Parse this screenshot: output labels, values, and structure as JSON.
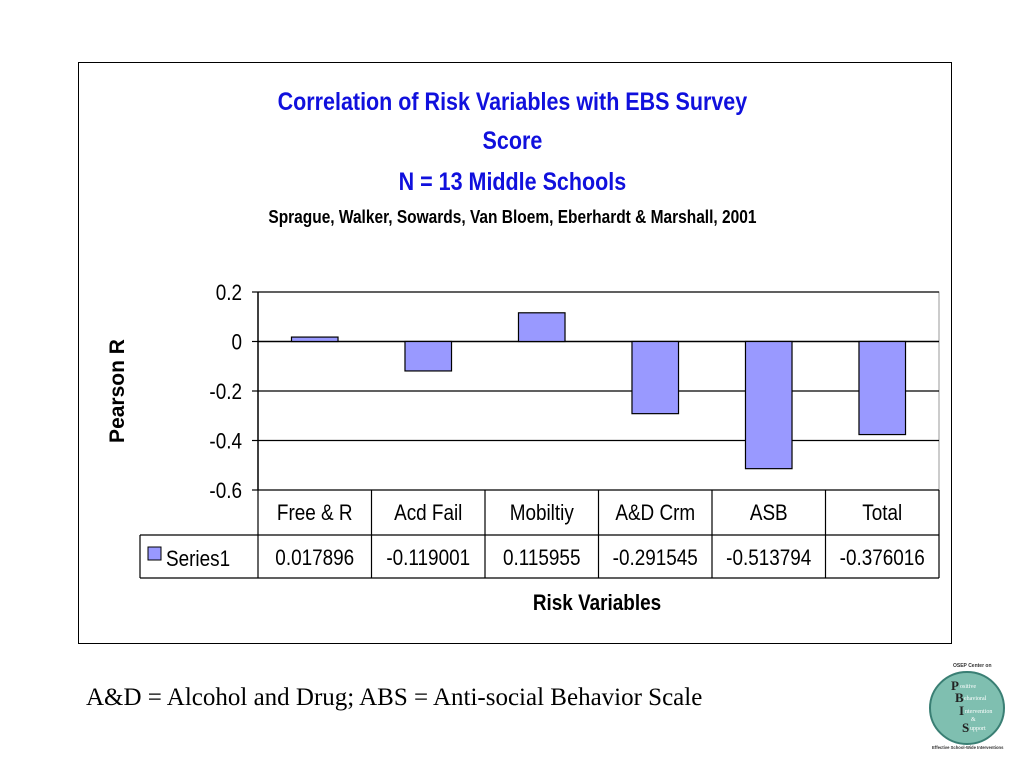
{
  "slide": {
    "footnote": "A&D = Alcohol and Drug; ABS = Anti-social Behavior Scale",
    "logo": {
      "text": [
        "OSEP Center on",
        "P",
        "ositive",
        "B",
        "ehavioral",
        "I",
        "ntervention",
        "&",
        "S",
        "upport",
        "Effective School-Wide Interventions"
      ],
      "colors": {
        "badge": "#7fbfb0",
        "ring": "#3a7f74"
      }
    }
  },
  "chart_data": {
    "type": "bar",
    "title_lines": [
      "Correlation of Risk Variables with EBS Survey",
      "Score",
      "N = 13 Middle Schools"
    ],
    "subtitle": "Sprague, Walker, Sowards, Van Bloem, Eberhardt & Marshall, 2001",
    "xlabel": "Risk Variables",
    "ylabel": "Pearson R",
    "categories": [
      "Free & R",
      "Acd Fail",
      "Mobiltiy",
      "A&D Crm",
      "ASB",
      "Total"
    ],
    "series": [
      {
        "name": "Series1",
        "values": [
          0.017896,
          -0.119001,
          0.115955,
          -0.291545,
          -0.513794,
          -0.376016
        ]
      }
    ],
    "value_labels": [
      "0.017896",
      "-0.119001",
      "0.115955",
      "-0.291545",
      "-0.513794",
      "-0.376016"
    ],
    "yticks": [
      "0.2",
      "0",
      "-0.2",
      "-0.4",
      "-0.6"
    ],
    "ytick_values": [
      0.2,
      0,
      -0.2,
      -0.4,
      -0.6
    ],
    "ylim": [
      -0.6,
      0.2
    ],
    "grid": true,
    "legend": "data-table",
    "colors": {
      "bar": "#9999ff",
      "bar_edge": "#000000",
      "title": "#1010dd"
    }
  }
}
